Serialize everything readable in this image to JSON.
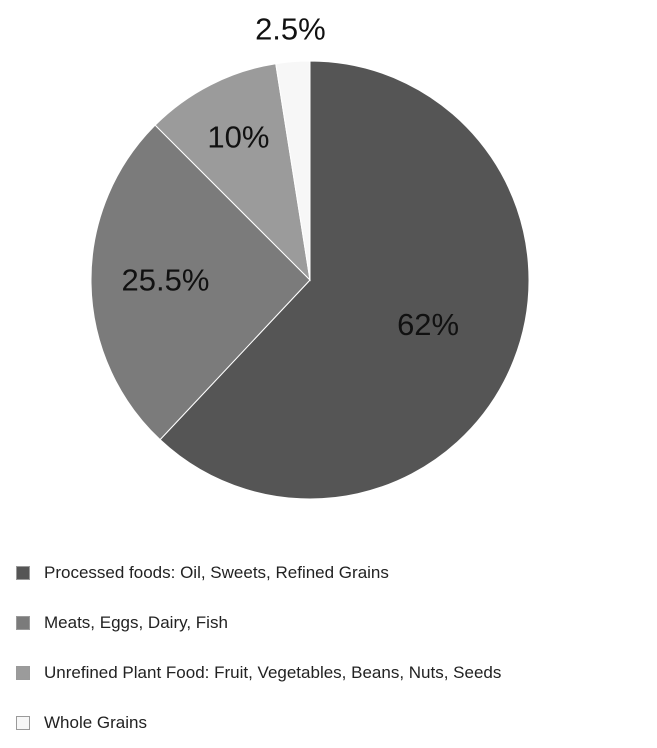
{
  "chart_data": {
    "type": "pie",
    "title": "",
    "slices": [
      {
        "label": "Processed foods: Oil, Sweets, Refined Grains",
        "value": 62,
        "display": "62%",
        "color": "#555555"
      },
      {
        "label": "Meats, Eggs, Dairy, Fish",
        "value": 25.5,
        "display": "25.5%",
        "color": "#7b7b7b"
      },
      {
        "label": "Unrefined Plant Food: Fruit, Vegetables, Beans, Nuts, Seeds",
        "value": 10,
        "display": "10%",
        "color": "#9b9b9b"
      },
      {
        "label": "Whole Grains",
        "value": 2.5,
        "display": "2.5%",
        "color": "#f7f7f7"
      }
    ],
    "legend_position": "bottom"
  }
}
